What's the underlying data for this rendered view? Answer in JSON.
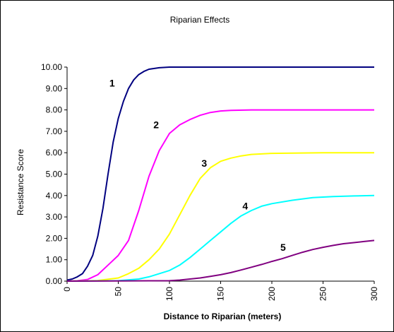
{
  "chart_data": {
    "type": "line",
    "title": "Riparian Effects",
    "xlabel": "Distance to Riparian (meters)",
    "ylabel": "Resistance Score",
    "xlim": [
      0,
      300
    ],
    "ylim": [
      0,
      10
    ],
    "x_ticks": [
      0,
      50,
      100,
      150,
      200,
      250,
      300
    ],
    "x_tick_labels": [
      "0",
      "50",
      "100",
      "150",
      "200",
      "250",
      "300"
    ],
    "y_ticks": [
      0,
      1,
      2,
      3,
      4,
      5,
      6,
      7,
      8,
      9,
      10
    ],
    "y_tick_labels": [
      "0.00",
      "1.00",
      "2.00",
      "3.00",
      "4.00",
      "5.00",
      "6.00",
      "7.00",
      "8.00",
      "9.00",
      "10.00"
    ],
    "grid": false,
    "legend": "none",
    "series": [
      {
        "label": "1",
        "color": "#000080",
        "label_at": [
          44,
          9.1
        ],
        "points": [
          [
            0,
            0.05
          ],
          [
            5,
            0.1
          ],
          [
            10,
            0.2
          ],
          [
            15,
            0.35
          ],
          [
            20,
            0.7
          ],
          [
            25,
            1.2
          ],
          [
            30,
            2.1
          ],
          [
            35,
            3.4
          ],
          [
            40,
            5.0
          ],
          [
            45,
            6.5
          ],
          [
            50,
            7.6
          ],
          [
            55,
            8.4
          ],
          [
            60,
            9.0
          ],
          [
            65,
            9.4
          ],
          [
            70,
            9.65
          ],
          [
            75,
            9.8
          ],
          [
            80,
            9.9
          ],
          [
            90,
            9.97
          ],
          [
            100,
            10
          ],
          [
            150,
            10
          ],
          [
            200,
            10
          ],
          [
            250,
            10
          ],
          [
            300,
            10
          ]
        ]
      },
      {
        "label": "2",
        "color": "#ff00ff",
        "label_at": [
          87,
          7.15
        ],
        "points": [
          [
            0,
            0
          ],
          [
            10,
            0.02
          ],
          [
            20,
            0.08
          ],
          [
            30,
            0.3
          ],
          [
            40,
            0.75
          ],
          [
            50,
            1.2
          ],
          [
            60,
            1.9
          ],
          [
            70,
            3.3
          ],
          [
            80,
            4.9
          ],
          [
            90,
            6.1
          ],
          [
            100,
            6.9
          ],
          [
            110,
            7.3
          ],
          [
            120,
            7.55
          ],
          [
            130,
            7.75
          ],
          [
            140,
            7.88
          ],
          [
            150,
            7.95
          ],
          [
            160,
            7.98
          ],
          [
            180,
            8.0
          ],
          [
            200,
            8.0
          ],
          [
            250,
            8.0
          ],
          [
            300,
            8.0
          ]
        ]
      },
      {
        "label": "3",
        "color": "#ffff00",
        "label_at": [
          134,
          5.35
        ],
        "points": [
          [
            0,
            0
          ],
          [
            30,
            0.03
          ],
          [
            50,
            0.15
          ],
          [
            60,
            0.35
          ],
          [
            70,
            0.6
          ],
          [
            80,
            1.0
          ],
          [
            90,
            1.5
          ],
          [
            100,
            2.2
          ],
          [
            110,
            3.1
          ],
          [
            120,
            4.0
          ],
          [
            130,
            4.8
          ],
          [
            140,
            5.3
          ],
          [
            150,
            5.6
          ],
          [
            160,
            5.75
          ],
          [
            170,
            5.85
          ],
          [
            180,
            5.92
          ],
          [
            200,
            5.97
          ],
          [
            250,
            6.0
          ],
          [
            300,
            6.0
          ]
        ]
      },
      {
        "label": "4",
        "color": "#00ffff",
        "label_at": [
          174,
          3.35
        ],
        "points": [
          [
            0,
            0
          ],
          [
            50,
            0.02
          ],
          [
            70,
            0.1
          ],
          [
            80,
            0.2
          ],
          [
            90,
            0.35
          ],
          [
            100,
            0.5
          ],
          [
            110,
            0.75
          ],
          [
            120,
            1.1
          ],
          [
            130,
            1.5
          ],
          [
            140,
            1.9
          ],
          [
            150,
            2.3
          ],
          [
            160,
            2.7
          ],
          [
            170,
            3.05
          ],
          [
            180,
            3.3
          ],
          [
            190,
            3.5
          ],
          [
            200,
            3.62
          ],
          [
            220,
            3.78
          ],
          [
            240,
            3.9
          ],
          [
            260,
            3.95
          ],
          [
            280,
            3.98
          ],
          [
            300,
            4.0
          ]
        ]
      },
      {
        "label": "5",
        "color": "#800080",
        "label_at": [
          211,
          1.42
        ],
        "points": [
          [
            0,
            0
          ],
          [
            100,
            0.02
          ],
          [
            110,
            0.05
          ],
          [
            120,
            0.1
          ],
          [
            130,
            0.15
          ],
          [
            140,
            0.22
          ],
          [
            150,
            0.3
          ],
          [
            160,
            0.4
          ],
          [
            170,
            0.52
          ],
          [
            180,
            0.65
          ],
          [
            190,
            0.78
          ],
          [
            200,
            0.92
          ],
          [
            210,
            1.05
          ],
          [
            220,
            1.2
          ],
          [
            230,
            1.35
          ],
          [
            240,
            1.48
          ],
          [
            250,
            1.58
          ],
          [
            260,
            1.67
          ],
          [
            270,
            1.75
          ],
          [
            280,
            1.8
          ],
          [
            290,
            1.85
          ],
          [
            300,
            1.9
          ]
        ]
      }
    ]
  }
}
